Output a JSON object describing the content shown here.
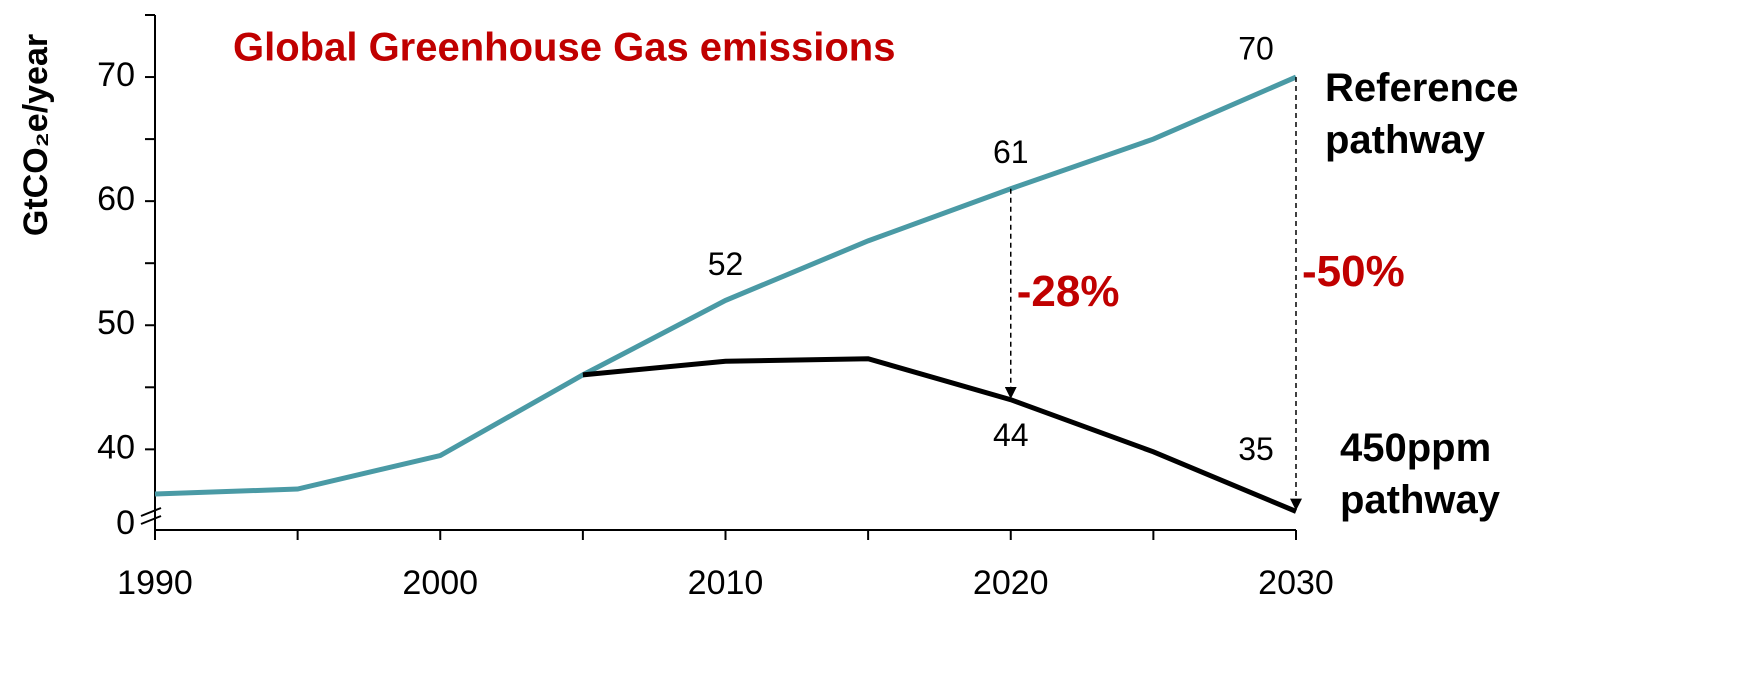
{
  "chart_data": {
    "type": "line",
    "title": "Global Greenhouse Gas emissions",
    "y_label": "GtCO₂e/year",
    "x": [
      1990,
      1995,
      2000,
      2005,
      2010,
      2015,
      2020,
      2025,
      2030
    ],
    "series": [
      {
        "name": "Reference pathway",
        "color": "#4a9aa5",
        "values": [
          36.4,
          36.8,
          39.5,
          46,
          52,
          56.8,
          61,
          65,
          70
        ],
        "value_labels": [
          null,
          null,
          null,
          null,
          "52",
          null,
          "61",
          null,
          "70"
        ]
      },
      {
        "name": "450ppm pathway",
        "color": "#000000",
        "values": [
          null,
          null,
          null,
          46,
          47.1,
          47.3,
          44,
          39.8,
          35
        ],
        "value_labels": [
          null,
          null,
          null,
          null,
          null,
          null,
          "44",
          null,
          "35"
        ]
      }
    ],
    "xlim": [
      1990,
      2030
    ],
    "xticks": [
      1990,
      2000,
      2010,
      2020,
      2030
    ],
    "x_minor_ticks": [
      1995,
      2005,
      2015,
      2025
    ],
    "ylim": [
      33.5,
      75
    ],
    "yticks": [
      40,
      50,
      60,
      70
    ],
    "y_minor_ticks": [
      45,
      55,
      65,
      75
    ],
    "y_axis_break": true,
    "y_break_tick": 0,
    "annotations": [
      {
        "text": "-28%",
        "x": 2020,
        "color": "#c00000"
      },
      {
        "text": "-50%",
        "x": 2030,
        "color": "#c00000"
      }
    ],
    "grid": false
  }
}
